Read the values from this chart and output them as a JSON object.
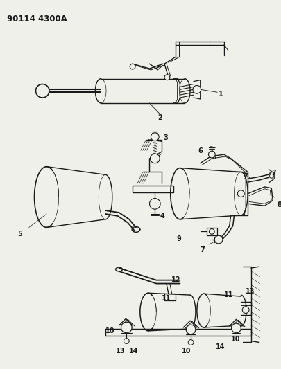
{
  "title": "90114 4300A",
  "bg_color": "#f0f0ea",
  "line_color": "#1a1a1a",
  "label_color": "#111111",
  "title_fontsize": 8.5,
  "label_fontsize": 7,
  "figsize": [
    4.05,
    5.33
  ],
  "dpi": 100,
  "white": "#ffffff"
}
